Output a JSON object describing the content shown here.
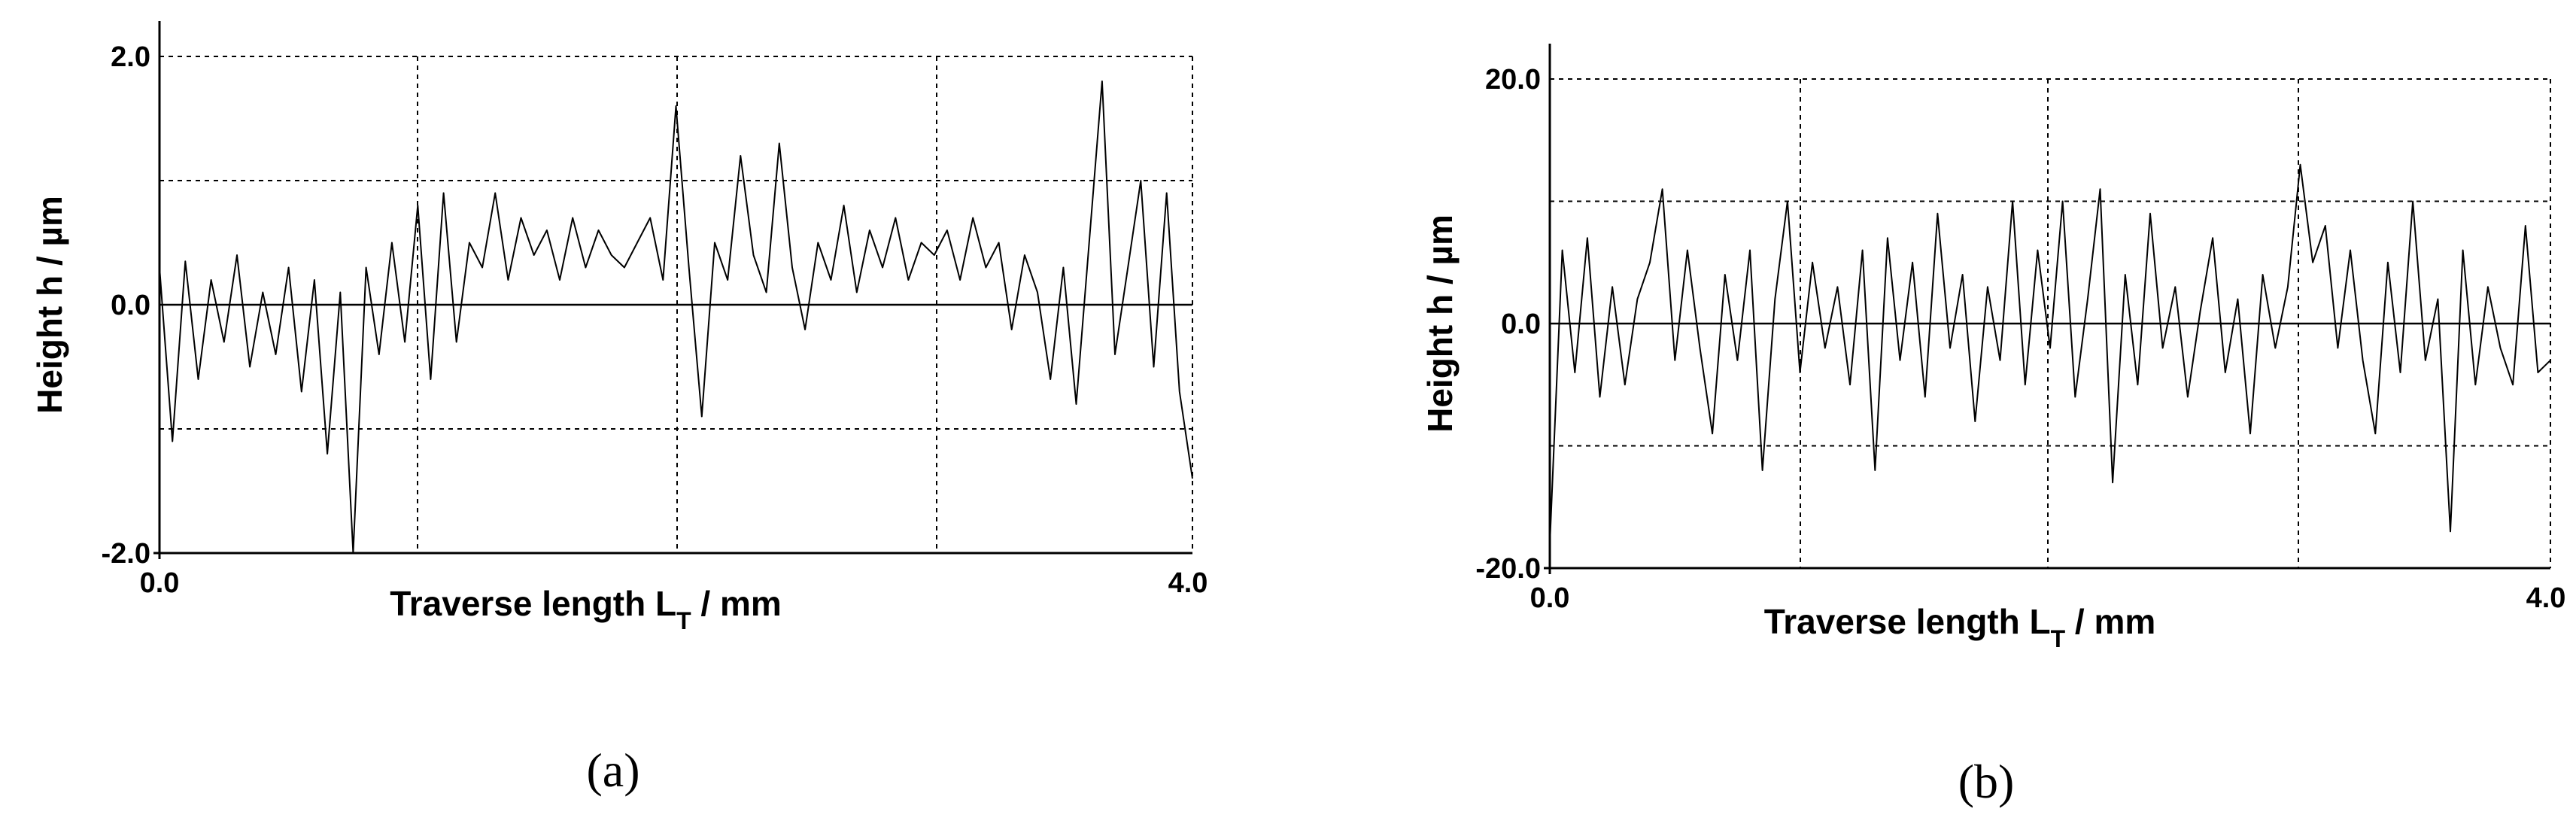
{
  "chart_data": [
    {
      "type": "line",
      "panel_label": "(a)",
      "xlabel": "Traverse length L",
      "xlabel_subscript": "T",
      "xlabel_suffix": " / mm",
      "ylabel": "Height h / µm",
      "xlim": [
        0.0,
        4.0
      ],
      "ylim": [
        -2.0,
        2.0
      ],
      "x_tick_labels": [
        "0.0",
        "4.0"
      ],
      "y_tick_labels": [
        "2.0",
        "0.0",
        "-2.0"
      ],
      "grid": true,
      "series": [
        {
          "x": [
            0.0,
            0.05,
            0.1,
            0.15,
            0.2,
            0.25,
            0.3,
            0.35,
            0.4,
            0.45,
            0.5,
            0.55,
            0.6,
            0.65,
            0.7,
            0.75,
            0.8,
            0.85,
            0.9,
            0.95,
            1.0,
            1.05,
            1.1,
            1.15,
            1.2,
            1.25,
            1.3,
            1.35,
            1.4,
            1.45,
            1.5,
            1.55,
            1.6,
            1.65,
            1.7,
            1.75,
            1.8,
            1.85,
            1.9,
            1.95,
            2.0,
            2.05,
            2.1,
            2.15,
            2.2,
            2.25,
            2.3,
            2.35,
            2.4,
            2.45,
            2.5,
            2.55,
            2.6,
            2.65,
            2.7,
            2.75,
            2.8,
            2.85,
            2.9,
            2.95,
            3.0,
            3.05,
            3.1,
            3.15,
            3.2,
            3.25,
            3.3,
            3.35,
            3.4,
            3.45,
            3.5,
            3.55,
            3.6,
            3.65,
            3.7,
            3.75,
            3.8,
            3.85,
            3.9,
            3.95,
            4.0
          ],
          "y": [
            0.3,
            -1.1,
            0.35,
            -0.6,
            0.2,
            -0.3,
            0.4,
            -0.5,
            0.1,
            -0.4,
            0.3,
            -0.7,
            0.2,
            -1.2,
            0.1,
            -2.0,
            0.3,
            -0.4,
            0.5,
            -0.3,
            0.8,
            -0.6,
            0.9,
            -0.3,
            0.5,
            0.3,
            0.9,
            0.2,
            0.7,
            0.4,
            0.6,
            0.2,
            0.7,
            0.3,
            0.6,
            0.4,
            0.3,
            0.5,
            0.7,
            0.2,
            1.6,
            0.3,
            -0.9,
            0.5,
            0.2,
            1.2,
            0.4,
            0.1,
            1.3,
            0.3,
            -0.2,
            0.5,
            0.2,
            0.8,
            0.1,
            0.6,
            0.3,
            0.7,
            0.2,
            0.5,
            0.4,
            0.6,
            0.2,
            0.7,
            0.3,
            0.5,
            -0.2,
            0.4,
            0.1,
            -0.6,
            0.3,
            -0.8,
            0.5,
            1.8,
            -0.4,
            0.3,
            1.0,
            -0.5,
            0.9,
            -0.7,
            -1.4
          ]
        }
      ]
    },
    {
      "type": "line",
      "panel_label": "(b)",
      "xlabel": "Traverse length L",
      "xlabel_subscript": "T",
      "xlabel_suffix": " / mm",
      "ylabel": "Height h / µm",
      "xlim": [
        0.0,
        4.0
      ],
      "ylim": [
        -20.0,
        20.0
      ],
      "x_tick_labels": [
        "0.0",
        "4.0"
      ],
      "y_tick_labels": [
        "20.0",
        "0.0",
        "-20.0"
      ],
      "grid": true,
      "series": [
        {
          "x": [
            0.0,
            0.05,
            0.1,
            0.15,
            0.2,
            0.25,
            0.3,
            0.35,
            0.4,
            0.45,
            0.5,
            0.55,
            0.6,
            0.65,
            0.7,
            0.75,
            0.8,
            0.85,
            0.9,
            0.95,
            1.0,
            1.05,
            1.1,
            1.15,
            1.2,
            1.25,
            1.3,
            1.35,
            1.4,
            1.45,
            1.5,
            1.55,
            1.6,
            1.65,
            1.7,
            1.75,
            1.8,
            1.85,
            1.9,
            1.95,
            2.0,
            2.05,
            2.1,
            2.15,
            2.2,
            2.25,
            2.3,
            2.35,
            2.4,
            2.45,
            2.5,
            2.55,
            2.6,
            2.65,
            2.7,
            2.75,
            2.8,
            2.85,
            2.9,
            2.95,
            3.0,
            3.05,
            3.1,
            3.15,
            3.2,
            3.25,
            3.3,
            3.35,
            3.4,
            3.45,
            3.5,
            3.55,
            3.6,
            3.65,
            3.7,
            3.75,
            3.8,
            3.85,
            3.9,
            3.95,
            4.0
          ],
          "y": [
            -18.0,
            6.0,
            -4.0,
            7.0,
            -6.0,
            3.0,
            -5.0,
            2.0,
            5.0,
            11.0,
            -3.0,
            6.0,
            -2.0,
            -9.0,
            4.0,
            -3.0,
            6.0,
            -12.0,
            2.0,
            10.0,
            -4.0,
            5.0,
            -2.0,
            3.0,
            -5.0,
            6.0,
            -12.0,
            7.0,
            -3.0,
            5.0,
            -6.0,
            9.0,
            -2.0,
            4.0,
            -8.0,
            3.0,
            -3.0,
            10.0,
            -5.0,
            6.0,
            -2.0,
            10.0,
            -6.0,
            2.0,
            11.0,
            -13.0,
            4.0,
            -5.0,
            9.0,
            -2.0,
            3.0,
            -6.0,
            1.0,
            7.0,
            -4.0,
            2.0,
            -9.0,
            4.0,
            -2.0,
            3.0,
            13.0,
            5.0,
            8.0,
            -2.0,
            6.0,
            -3.0,
            -9.0,
            5.0,
            -4.0,
            10.0,
            -3.0,
            2.0,
            -17.0,
            6.0,
            -5.0,
            3.0,
            -2.0,
            -5.0,
            8.0,
            -4.0,
            -3.0
          ]
        }
      ]
    }
  ]
}
